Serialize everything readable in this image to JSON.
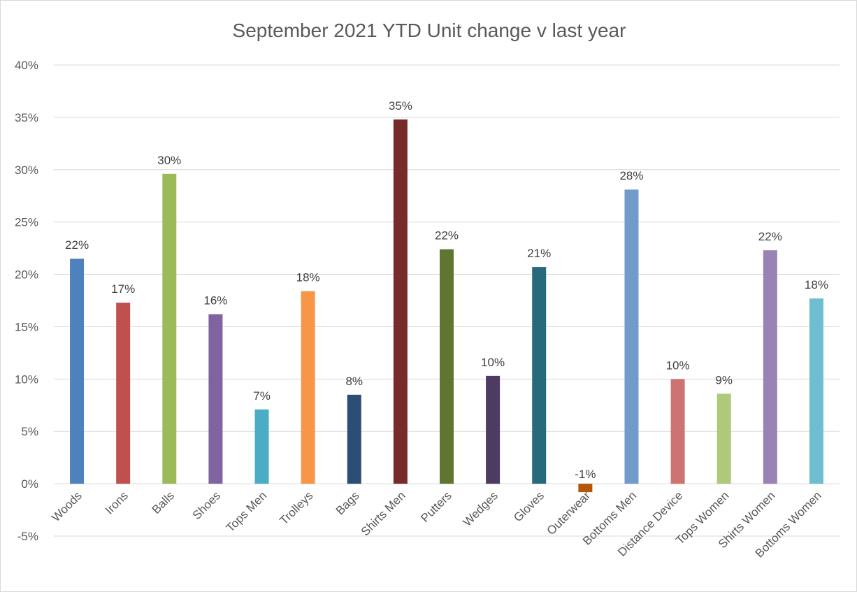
{
  "chart_data": {
    "type": "bar",
    "title": "September 2021 YTD Unit change v last year",
    "xlabel": "",
    "ylabel": "",
    "ylim": [
      -5,
      40
    ],
    "yticks": [
      -5,
      0,
      5,
      10,
      15,
      20,
      25,
      30,
      35,
      40
    ],
    "ytick_labels": [
      "-5%",
      "0%",
      "5%",
      "10%",
      "15%",
      "20%",
      "25%",
      "30%",
      "35%",
      "40%"
    ],
    "grid": true,
    "legend": "none",
    "categories": [
      "Woods",
      "Irons",
      "Balls",
      "Shoes",
      "Tops Men",
      "Trolleys",
      "Bags",
      "Shirts Men",
      "Putters",
      "Wedges",
      "Gloves",
      "Outerwear",
      "Bottoms Men",
      "Distance Device",
      "Tops Women",
      "Shirts Women",
      "Bottoms Women"
    ],
    "values": [
      21.5,
      17.3,
      29.6,
      16.2,
      7.1,
      18.4,
      8.5,
      34.8,
      22.4,
      10.3,
      20.7,
      -0.8,
      28.1,
      10.0,
      8.6,
      22.3,
      17.7
    ],
    "data_labels": [
      "22%",
      "17%",
      "30%",
      "16%",
      "7%",
      "18%",
      "8%",
      "35%",
      "22%",
      "10%",
      "21%",
      "-1%",
      "28%",
      "10%",
      "9%",
      "22%",
      "18%"
    ],
    "colors": [
      "#4F81BD",
      "#C0504D",
      "#9BBB59",
      "#8064A2",
      "#4BACC6",
      "#F79646",
      "#2C4D75",
      "#772C2A",
      "#5F7530",
      "#4D3B62",
      "#276A7C",
      "#B65708",
      "#729ACA",
      "#CD7371",
      "#AFC97A",
      "#9983B5",
      "#6FBDD1"
    ]
  }
}
